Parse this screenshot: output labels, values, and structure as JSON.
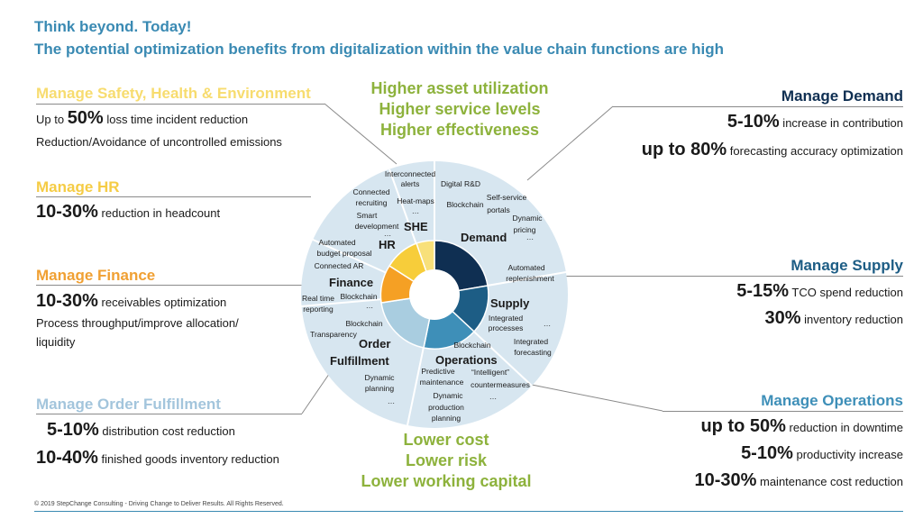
{
  "header": {
    "title": "Think beyond. Today!",
    "subtitle": "The potential optimization benefits from digitalization within the value chain functions are high"
  },
  "center_top": [
    "Higher asset utilization",
    "Higher service levels",
    "Higher effectiveness"
  ],
  "center_bottom": [
    "Lower cost",
    "Lower risk",
    "Lower working capital"
  ],
  "left": {
    "she": {
      "title": "Manage Safety, Health & Environment",
      "line1_pre": "Up to ",
      "line1_big": "50%",
      "line1_post": " loss time incident reduction",
      "line2": "Reduction/Avoidance of uncontrolled emissions"
    },
    "hr": {
      "title": "Manage HR",
      "big": "10-30%",
      "text": " reduction in headcount"
    },
    "finance": {
      "title": "Manage Finance",
      "big": "10-30%",
      "text": " receivables  optimization",
      "line2": "Process throughput/improve allocation/",
      "line3": "liquidity"
    },
    "order": {
      "title": "Manage Order Fulfillment",
      "r1_big": "5-10%",
      "r1_text": " distribution cost reduction",
      "r2_big": "10-40%",
      "r2_text": " finished goods inventory reduction"
    }
  },
  "right": {
    "demand": {
      "title": "Manage Demand",
      "r1_big": "5-10%",
      "r1_text": " increase in contribution",
      "r2_big": "up to 80%",
      "r2_text": " forecasting accuracy optimization"
    },
    "supply": {
      "title": "Manage Supply",
      "r1_big": "5-15%",
      "r1_text": " TCO spend reduction",
      "r2_big": "30%",
      "r2_text": " inventory reduction"
    },
    "operations": {
      "title": "Manage Operations",
      "r1_big": "up to 50%",
      "r1_text": " reduction in downtime",
      "r2_big": "5-10%",
      "r2_text": " productivity increase",
      "r3_big": "10-30%",
      "r3_text": " maintenance cost reduction"
    }
  },
  "wheel": {
    "segments": [
      {
        "name": "Demand",
        "color": "#0f2f52",
        "items": [
          "Digital R&D",
          "Blockchain",
          "Self-service",
          "portals",
          "Dynamic",
          "pricing",
          "…"
        ]
      },
      {
        "name": "Supply",
        "color": "#1d5d85",
        "items": [
          "Automated",
          "replenishment",
          "Integrated",
          "processes",
          "Integrated",
          "forecasting",
          "…"
        ]
      },
      {
        "name": "Operations",
        "color": "#3e8fb8",
        "items": [
          "Blockchain",
          "Predictive",
          "maintenance",
          "“Intelligent”",
          "countermeasures",
          "Dynamic",
          "production",
          "planning",
          "…"
        ]
      },
      {
        "name": "Order Fulfillment",
        "color": "#a9cde0",
        "items": [
          "Blockchain",
          "Transparency",
          "Dynamic",
          "planning",
          "…"
        ]
      },
      {
        "name": "Finance",
        "color": "#f5a024",
        "items": [
          "Automated",
          "budget proposal",
          "Connected AR",
          "Real time",
          "reporting",
          "Blockchain",
          "…"
        ]
      },
      {
        "name": "HR",
        "color": "#f7cd3a",
        "items": [
          "Connected",
          "recruiting",
          "Smart",
          "development",
          "…"
        ]
      },
      {
        "name": "SHE",
        "color": "#f8e07a",
        "items": [
          "Interconnected",
          "alerts",
          "Heat-maps",
          "…"
        ]
      }
    ],
    "labels": {
      "demand": "Demand",
      "supply": "Supply",
      "operations": "Operations",
      "order1": "Order",
      "order2": "Fulfillment",
      "finance": "Finance",
      "hr": "HR",
      "she": "SHE"
    }
  },
  "colors": {
    "header": "#3a8ab3",
    "green": "#8db23c",
    "she_title": "#f7dc6f",
    "hr_title": "#f5cc45",
    "finance_title": "#f0a033",
    "order_title": "#a3c5dc",
    "demand_title": "#0f2f52",
    "supply_title": "#1d5d85",
    "ops_title": "#3e8fb8",
    "ring": "#d7e6f0"
  },
  "footer": "© 2019 StepChange Consulting - Driving Change to Deliver Results. All Rights Reserved."
}
